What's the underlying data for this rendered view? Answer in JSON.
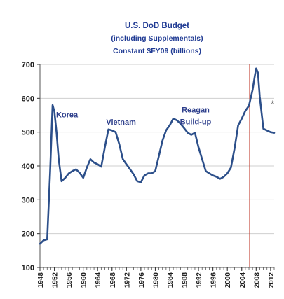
{
  "chart_data": {
    "type": "line",
    "title": "U.S. DoD Budget",
    "subtitle": "(including Supplementals)",
    "subtitle2": "Constant $FY09 (billions)",
    "xlabel": "",
    "ylabel": "",
    "xlim": [
      1948,
      2013
    ],
    "ylim": [
      100,
      700
    ],
    "grid": true,
    "y_ticks": [
      100,
      200,
      300,
      400,
      500,
      600,
      700
    ],
    "x_ticks": [
      1948,
      1952,
      1956,
      1960,
      1964,
      1968,
      1972,
      1976,
      1980,
      1984,
      1988,
      1992,
      1996,
      2000,
      2004,
      2008,
      2012
    ],
    "x_tick_labels": [
      "1948",
      "1952",
      "1956",
      "1960",
      "1964",
      "1968",
      "1972",
      "1976",
      "1980",
      "1984",
      "1988",
      "1992",
      "1996",
      "2000",
      "2004",
      "2008",
      "2012"
    ],
    "annotations": [
      {
        "text": "Korea",
        "x": 1955.5,
        "y": 552
      },
      {
        "text": "Vietnam",
        "x": 1970.5,
        "y": 530
      },
      {
        "text": "Reagan",
        "x": 1991.2,
        "y": 567
      },
      {
        "text": "Build-up",
        "x": 1991.2,
        "y": 531
      },
      {
        "text": "*",
        "x": 2012.6,
        "y": 583
      }
    ],
    "reference_line": {
      "x": 2006.2,
      "color": "#c0392b"
    },
    "series": [
      {
        "color": "#2c4f8a",
        "x": [
          1948,
          1949,
          1950,
          1950.8,
          1951.5,
          1952,
          1952.6,
          1953.2,
          1954,
          1955,
          1956,
          1957,
          1958,
          1959,
          1960,
          1961,
          1962,
          1963,
          1964,
          1965,
          1966,
          1967,
          1968,
          1969,
          1970,
          1971,
          1972,
          1973,
          1974,
          1975,
          1976,
          1977,
          1978,
          1979,
          1980,
          1981,
          1982,
          1983,
          1984,
          1985,
          1986,
          1987,
          1988,
          1989,
          1990,
          1991,
          1992,
          1993,
          1994,
          1995,
          1996,
          1997,
          1998,
          1999,
          2000,
          2001,
          2002,
          2003,
          2004,
          2005,
          2006,
          2007,
          2007.6,
          2008,
          2008.5,
          2009,
          2010,
          2011,
          2012,
          2013
        ],
        "y": [
          170,
          180,
          183,
          380,
          580,
          560,
          500,
          420,
          355,
          365,
          378,
          385,
          390,
          380,
          365,
          395,
          420,
          410,
          405,
          398,
          455,
          508,
          505,
          500,
          465,
          420,
          405,
          390,
          375,
          355,
          352,
          372,
          378,
          378,
          385,
          430,
          475,
          505,
          520,
          540,
          535,
          525,
          512,
          498,
          492,
          498,
          455,
          420,
          385,
          378,
          372,
          368,
          362,
          368,
          378,
          395,
          452,
          520,
          540,
          563,
          578,
          625,
          665,
          688,
          675,
          605,
          510,
          505,
          500,
          498
        ]
      }
    ]
  }
}
